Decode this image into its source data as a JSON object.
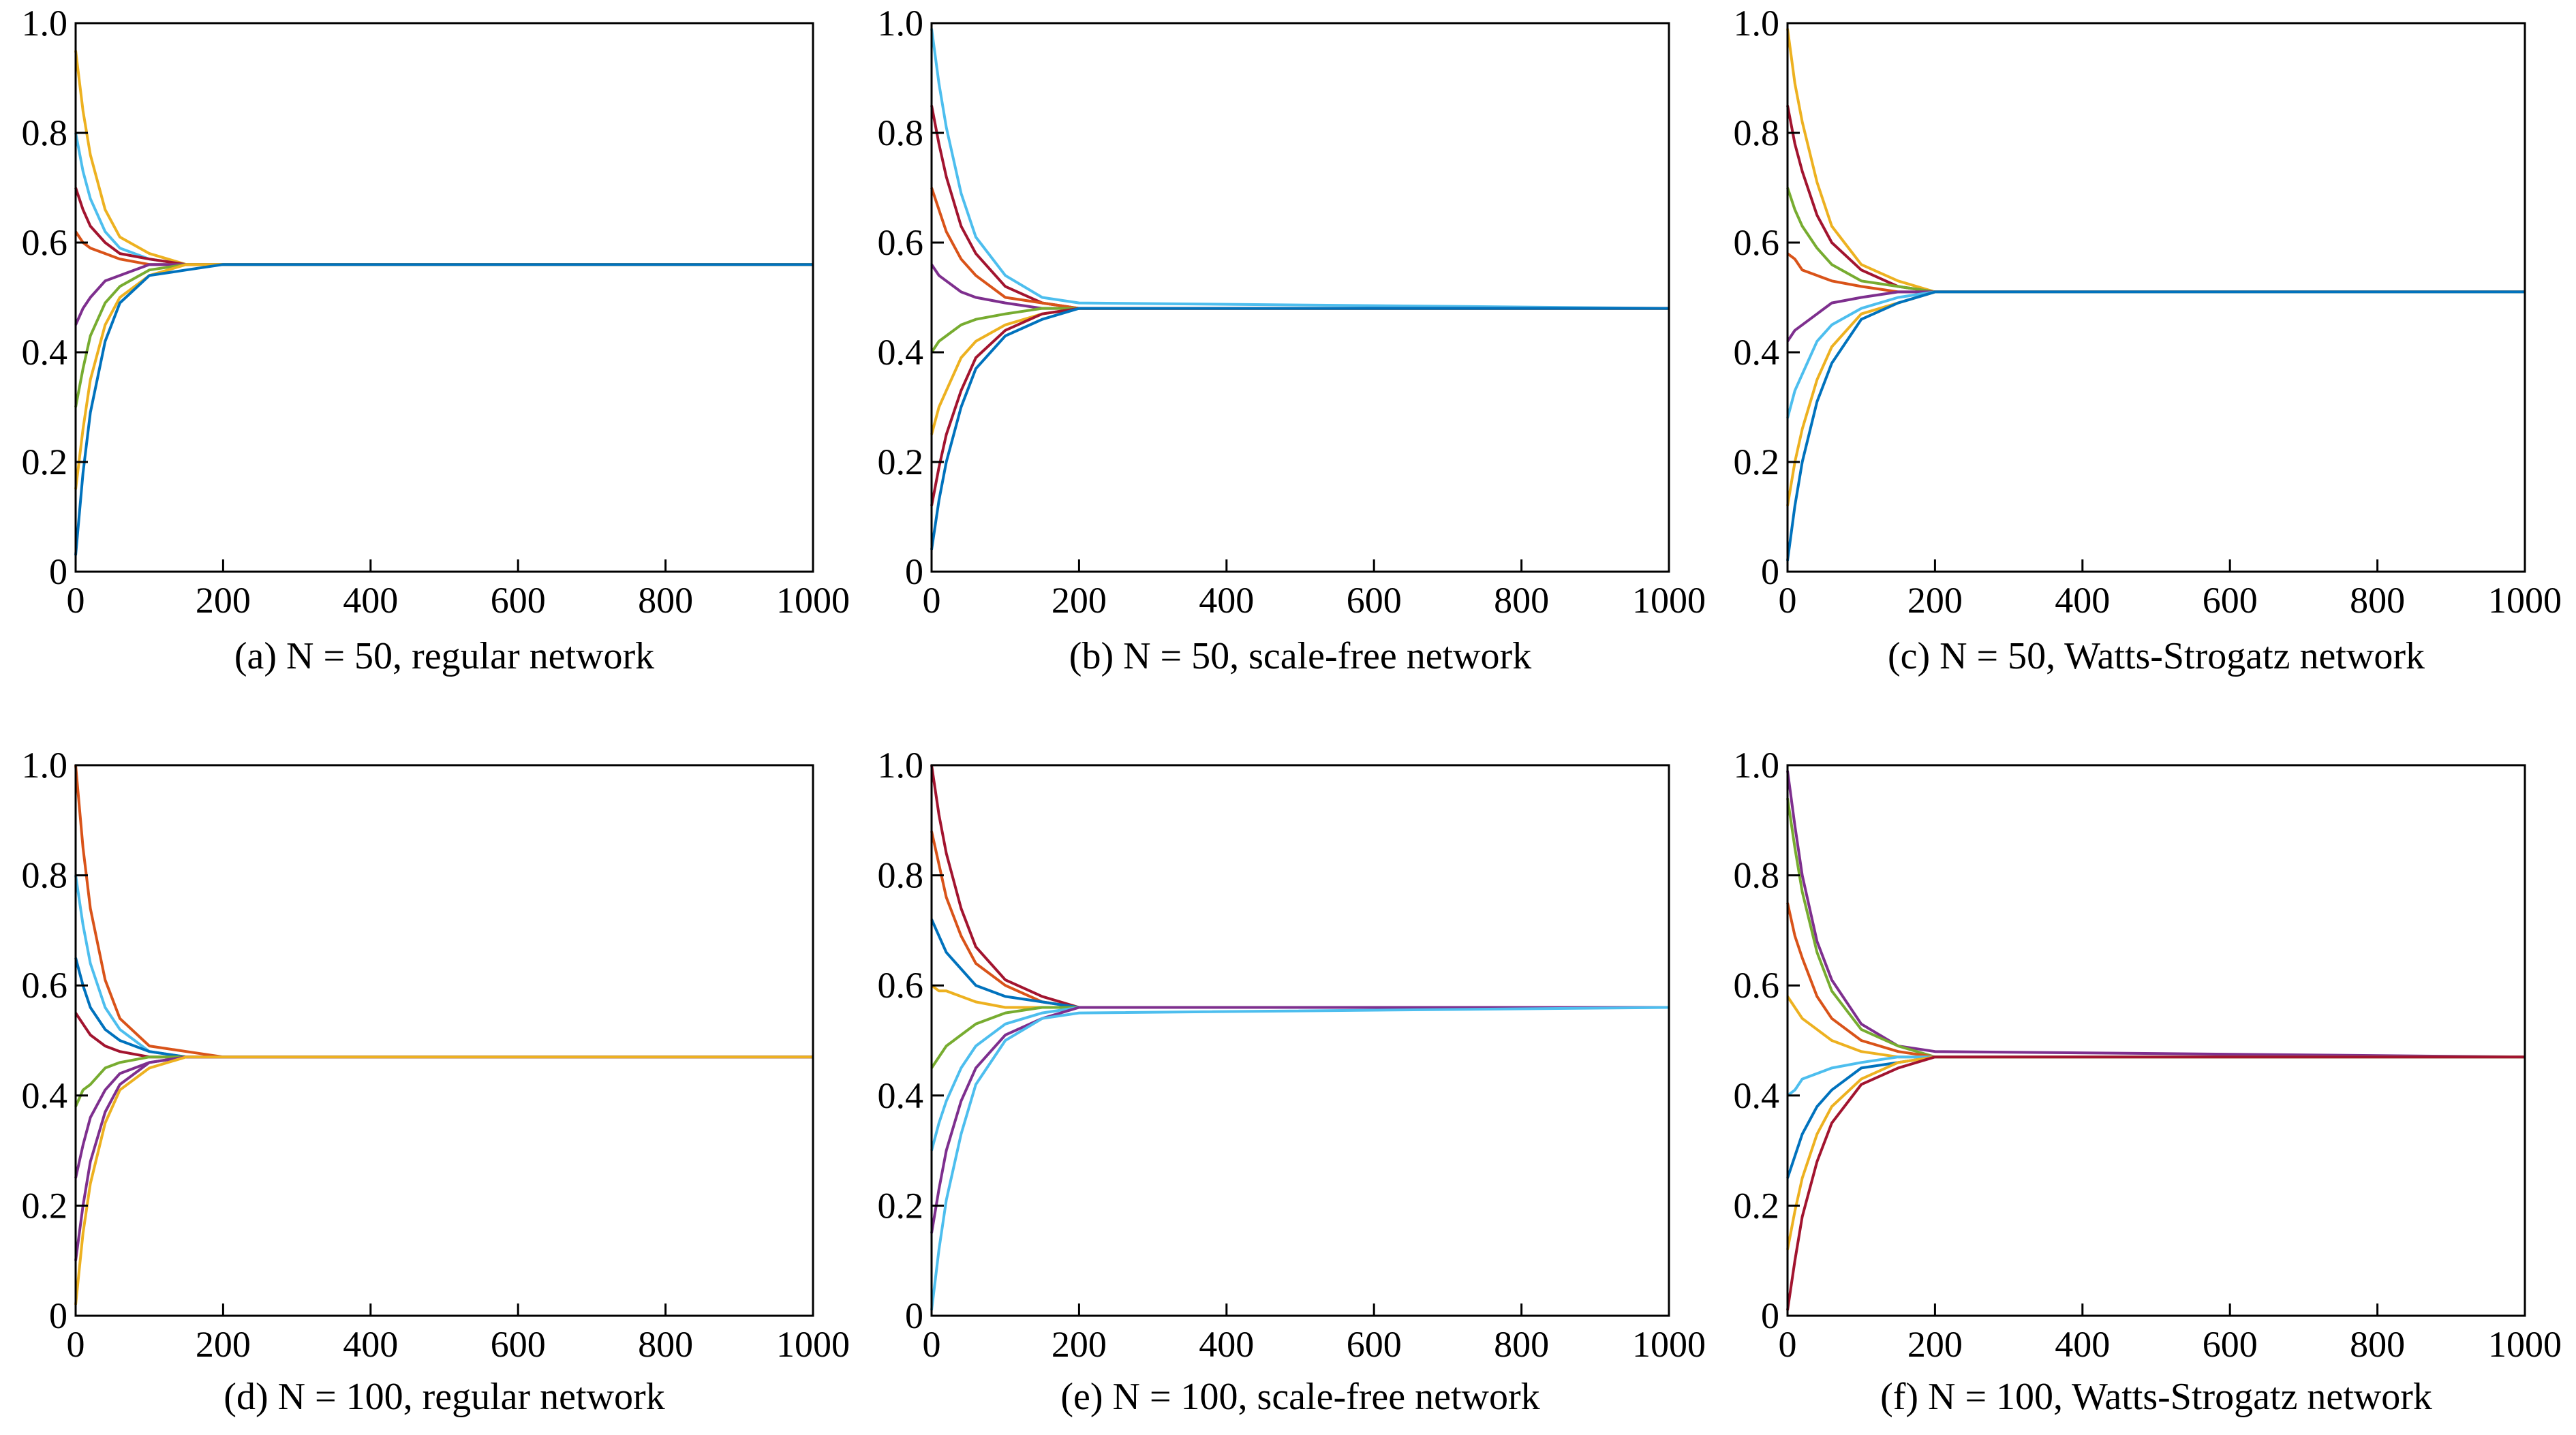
{
  "chart_data": [
    {
      "type": "line",
      "title": "(a) N = 50, regular network",
      "x": [
        0,
        10,
        20,
        40,
        60,
        100,
        150,
        200,
        1000
      ],
      "xlim": [
        0,
        1000
      ],
      "xticks": [
        0,
        200,
        400,
        600,
        800,
        1000
      ],
      "ylim": [
        0,
        1
      ],
      "yticks": [
        0,
        0.2,
        0.4,
        0.6,
        0.8,
        {
          "value": 1,
          "label": "1.0"
        }
      ],
      "series": [
        {
          "color": "#EDB120",
          "values": [
            0.95,
            0.84,
            0.76,
            0.66,
            0.61,
            0.58,
            0.56,
            0.56,
            0.56
          ]
        },
        {
          "color": "#4DBEEE",
          "values": [
            0.8,
            0.73,
            0.68,
            0.62,
            0.59,
            0.57,
            0.56,
            0.56,
            0.56
          ]
        },
        {
          "color": "#A2142F",
          "values": [
            0.7,
            0.66,
            0.63,
            0.6,
            0.58,
            0.57,
            0.56,
            0.56,
            0.56
          ]
        },
        {
          "color": "#D95319",
          "values": [
            0.62,
            0.6,
            0.59,
            0.58,
            0.57,
            0.56,
            0.56,
            0.56,
            0.56
          ]
        },
        {
          "color": "#7E2F8E",
          "values": [
            0.45,
            0.48,
            0.5,
            0.53,
            0.54,
            0.56,
            0.56,
            0.56,
            0.56
          ]
        },
        {
          "color": "#77AC30",
          "values": [
            0.3,
            0.37,
            0.43,
            0.49,
            0.52,
            0.55,
            0.56,
            0.56,
            0.56
          ]
        },
        {
          "color": "#EDB120",
          "values": [
            0.15,
            0.26,
            0.35,
            0.45,
            0.5,
            0.54,
            0.56,
            0.56,
            0.56
          ]
        },
        {
          "color": "#0072BD",
          "values": [
            0.03,
            0.18,
            0.29,
            0.42,
            0.49,
            0.54,
            0.55,
            0.56,
            0.56
          ]
        }
      ]
    },
    {
      "type": "line",
      "title": "(b) N = 50, scale-free network",
      "x": [
        0,
        10,
        20,
        40,
        60,
        100,
        150,
        200,
        1000
      ],
      "xlim": [
        0,
        1000
      ],
      "xticks": [
        0,
        200,
        400,
        600,
        800,
        1000
      ],
      "ylim": [
        0,
        1
      ],
      "yticks": [
        0,
        0.2,
        0.4,
        0.6,
        0.8,
        {
          "value": 1,
          "label": "1.0"
        }
      ],
      "series": [
        {
          "color": "#4DBEEE",
          "values": [
            0.99,
            0.89,
            0.81,
            0.69,
            0.61,
            0.54,
            0.5,
            0.49,
            0.48
          ]
        },
        {
          "color": "#A2142F",
          "values": [
            0.85,
            0.78,
            0.72,
            0.63,
            0.58,
            0.52,
            0.49,
            0.48,
            0.48
          ]
        },
        {
          "color": "#D95319",
          "values": [
            0.7,
            0.66,
            0.62,
            0.57,
            0.54,
            0.5,
            0.49,
            0.48,
            0.48
          ]
        },
        {
          "color": "#7E2F8E",
          "values": [
            0.56,
            0.54,
            0.53,
            0.51,
            0.5,
            0.49,
            0.48,
            0.48,
            0.48
          ]
        },
        {
          "color": "#77AC30",
          "values": [
            0.4,
            0.42,
            0.43,
            0.45,
            0.46,
            0.47,
            0.48,
            0.48,
            0.48
          ]
        },
        {
          "color": "#EDB120",
          "values": [
            0.25,
            0.3,
            0.33,
            0.39,
            0.42,
            0.45,
            0.47,
            0.48,
            0.48
          ]
        },
        {
          "color": "#A2142F",
          "values": [
            0.12,
            0.19,
            0.25,
            0.33,
            0.39,
            0.44,
            0.47,
            0.48,
            0.48
          ]
        },
        {
          "color": "#0072BD",
          "values": [
            0.04,
            0.13,
            0.2,
            0.3,
            0.37,
            0.43,
            0.46,
            0.48,
            0.48
          ]
        }
      ]
    },
    {
      "type": "line",
      "title": "(c) N = 50, Watts-Strogatz network",
      "x": [
        0,
        10,
        20,
        40,
        60,
        100,
        150,
        200,
        1000
      ],
      "xlim": [
        0,
        1000
      ],
      "xticks": [
        0,
        200,
        400,
        600,
        800,
        1000
      ],
      "ylim": [
        0,
        1
      ],
      "yticks": [
        0,
        0.2,
        0.4,
        0.6,
        0.8,
        {
          "value": 1,
          "label": "1.0"
        }
      ],
      "series": [
        {
          "color": "#EDB120",
          "values": [
            0.99,
            0.89,
            0.82,
            0.71,
            0.63,
            0.56,
            0.53,
            0.51,
            0.51
          ]
        },
        {
          "color": "#A2142F",
          "values": [
            0.85,
            0.78,
            0.73,
            0.65,
            0.6,
            0.55,
            0.52,
            0.51,
            0.51
          ]
        },
        {
          "color": "#77AC30",
          "values": [
            0.7,
            0.66,
            0.63,
            0.59,
            0.56,
            0.53,
            0.52,
            0.51,
            0.51
          ]
        },
        {
          "color": "#D95319",
          "values": [
            0.58,
            0.57,
            0.55,
            0.54,
            0.53,
            0.52,
            0.51,
            0.51,
            0.51
          ]
        },
        {
          "color": "#7E2F8E",
          "values": [
            0.42,
            0.44,
            0.45,
            0.47,
            0.49,
            0.5,
            0.51,
            0.51,
            0.51
          ]
        },
        {
          "color": "#4DBEEE",
          "values": [
            0.28,
            0.33,
            0.36,
            0.42,
            0.45,
            0.48,
            0.5,
            0.51,
            0.51
          ]
        },
        {
          "color": "#EDB120",
          "values": [
            0.12,
            0.2,
            0.26,
            0.35,
            0.41,
            0.47,
            0.49,
            0.51,
            0.51
          ]
        },
        {
          "color": "#0072BD",
          "values": [
            0.02,
            0.12,
            0.2,
            0.31,
            0.38,
            0.46,
            0.49,
            0.51,
            0.51
          ]
        }
      ]
    },
    {
      "type": "line",
      "title": "(d) N = 100, regular network",
      "x": [
        0,
        10,
        20,
        40,
        60,
        100,
        150,
        200,
        1000
      ],
      "xlim": [
        0,
        1000
      ],
      "xticks": [
        0,
        200,
        400,
        600,
        800,
        1000
      ],
      "ylim": [
        0,
        1
      ],
      "yticks": [
        0,
        0.2,
        0.4,
        0.6,
        0.8,
        {
          "value": 1,
          "label": "1.0"
        }
      ],
      "series": [
        {
          "color": "#D95319",
          "values": [
            1.0,
            0.85,
            0.74,
            0.61,
            0.54,
            0.49,
            0.48,
            0.47,
            0.47
          ]
        },
        {
          "color": "#4DBEEE",
          "values": [
            0.8,
            0.71,
            0.64,
            0.56,
            0.52,
            0.48,
            0.47,
            0.47,
            0.47
          ]
        },
        {
          "color": "#0072BD",
          "values": [
            0.65,
            0.6,
            0.56,
            0.52,
            0.5,
            0.48,
            0.47,
            0.47,
            0.47
          ]
        },
        {
          "color": "#A2142F",
          "values": [
            0.55,
            0.53,
            0.51,
            0.49,
            0.48,
            0.47,
            0.47,
            0.47,
            0.47
          ]
        },
        {
          "color": "#77AC30",
          "values": [
            0.38,
            0.41,
            0.42,
            0.45,
            0.46,
            0.47,
            0.47,
            0.47,
            0.47
          ]
        },
        {
          "color": "#7E2F8E",
          "values": [
            0.25,
            0.31,
            0.36,
            0.41,
            0.44,
            0.46,
            0.47,
            0.47,
            0.47
          ]
        },
        {
          "color": "#7E2F8E",
          "values": [
            0.1,
            0.2,
            0.28,
            0.37,
            0.42,
            0.46,
            0.47,
            0.47,
            0.47
          ]
        },
        {
          "color": "#EDB120",
          "values": [
            0.02,
            0.15,
            0.24,
            0.35,
            0.41,
            0.45,
            0.47,
            0.47,
            0.47
          ]
        }
      ]
    },
    {
      "type": "line",
      "title": "(e) N = 100, scale-free network",
      "x": [
        0,
        10,
        20,
        40,
        60,
        100,
        150,
        200,
        1000
      ],
      "xlim": [
        0,
        1000
      ],
      "xticks": [
        0,
        200,
        400,
        600,
        800,
        1000
      ],
      "ylim": [
        0,
        1
      ],
      "yticks": [
        0,
        0.2,
        0.4,
        0.6,
        0.8,
        {
          "value": 1,
          "label": "1.0"
        }
      ],
      "series": [
        {
          "color": "#A2142F",
          "values": [
            1.0,
            0.91,
            0.84,
            0.74,
            0.67,
            0.61,
            0.58,
            0.56,
            0.56
          ]
        },
        {
          "color": "#D95319",
          "values": [
            0.88,
            0.82,
            0.76,
            0.69,
            0.64,
            0.6,
            0.57,
            0.56,
            0.56
          ]
        },
        {
          "color": "#0072BD",
          "values": [
            0.72,
            0.69,
            0.66,
            0.63,
            0.6,
            0.58,
            0.57,
            0.56,
            0.56
          ]
        },
        {
          "color": "#EDB120",
          "values": [
            0.6,
            0.59,
            0.59,
            0.58,
            0.57,
            0.56,
            0.56,
            0.56,
            0.56
          ]
        },
        {
          "color": "#77AC30",
          "values": [
            0.45,
            0.47,
            0.49,
            0.51,
            0.53,
            0.55,
            0.56,
            0.56,
            0.56
          ]
        },
        {
          "color": "#4DBEEE",
          "values": [
            0.3,
            0.35,
            0.39,
            0.45,
            0.49,
            0.53,
            0.55,
            0.56,
            0.56
          ]
        },
        {
          "color": "#7E2F8E",
          "values": [
            0.15,
            0.23,
            0.3,
            0.39,
            0.45,
            0.51,
            0.54,
            0.56,
            0.56
          ]
        },
        {
          "color": "#4DBEEE",
          "values": [
            0.01,
            0.12,
            0.21,
            0.33,
            0.42,
            0.5,
            0.54,
            0.55,
            0.56
          ]
        }
      ]
    },
    {
      "type": "line",
      "title": "(f) N = 100, Watts-Strogatz network",
      "x": [
        0,
        10,
        20,
        40,
        60,
        100,
        150,
        200,
        1000
      ],
      "xlim": [
        0,
        1000
      ],
      "xticks": [
        0,
        200,
        400,
        600,
        800,
        1000
      ],
      "ylim": [
        0,
        1
      ],
      "yticks": [
        0,
        0.2,
        0.4,
        0.6,
        0.8,
        {
          "value": 1,
          "label": "1.0"
        }
      ],
      "series": [
        {
          "color": "#7E2F8E",
          "values": [
            0.99,
            0.89,
            0.8,
            0.68,
            0.61,
            0.53,
            0.49,
            0.48,
            0.47
          ]
        },
        {
          "color": "#77AC30",
          "values": [
            0.94,
            0.85,
            0.77,
            0.66,
            0.59,
            0.52,
            0.49,
            0.47,
            0.47
          ]
        },
        {
          "color": "#D95319",
          "values": [
            0.75,
            0.69,
            0.65,
            0.58,
            0.54,
            0.5,
            0.48,
            0.47,
            0.47
          ]
        },
        {
          "color": "#EDB120",
          "values": [
            0.58,
            0.56,
            0.54,
            0.52,
            0.5,
            0.48,
            0.47,
            0.47,
            0.47
          ]
        },
        {
          "color": "#4DBEEE",
          "values": [
            0.4,
            0.41,
            0.43,
            0.44,
            0.45,
            0.46,
            0.47,
            0.47,
            0.47
          ]
        },
        {
          "color": "#0072BD",
          "values": [
            0.25,
            0.29,
            0.33,
            0.38,
            0.41,
            0.45,
            0.46,
            0.47,
            0.47
          ]
        },
        {
          "color": "#EDB120",
          "values": [
            0.12,
            0.19,
            0.25,
            0.33,
            0.38,
            0.43,
            0.46,
            0.47,
            0.47
          ]
        },
        {
          "color": "#A2142F",
          "values": [
            0.01,
            0.1,
            0.18,
            0.28,
            0.35,
            0.42,
            0.45,
            0.47,
            0.47
          ]
        }
      ]
    }
  ]
}
